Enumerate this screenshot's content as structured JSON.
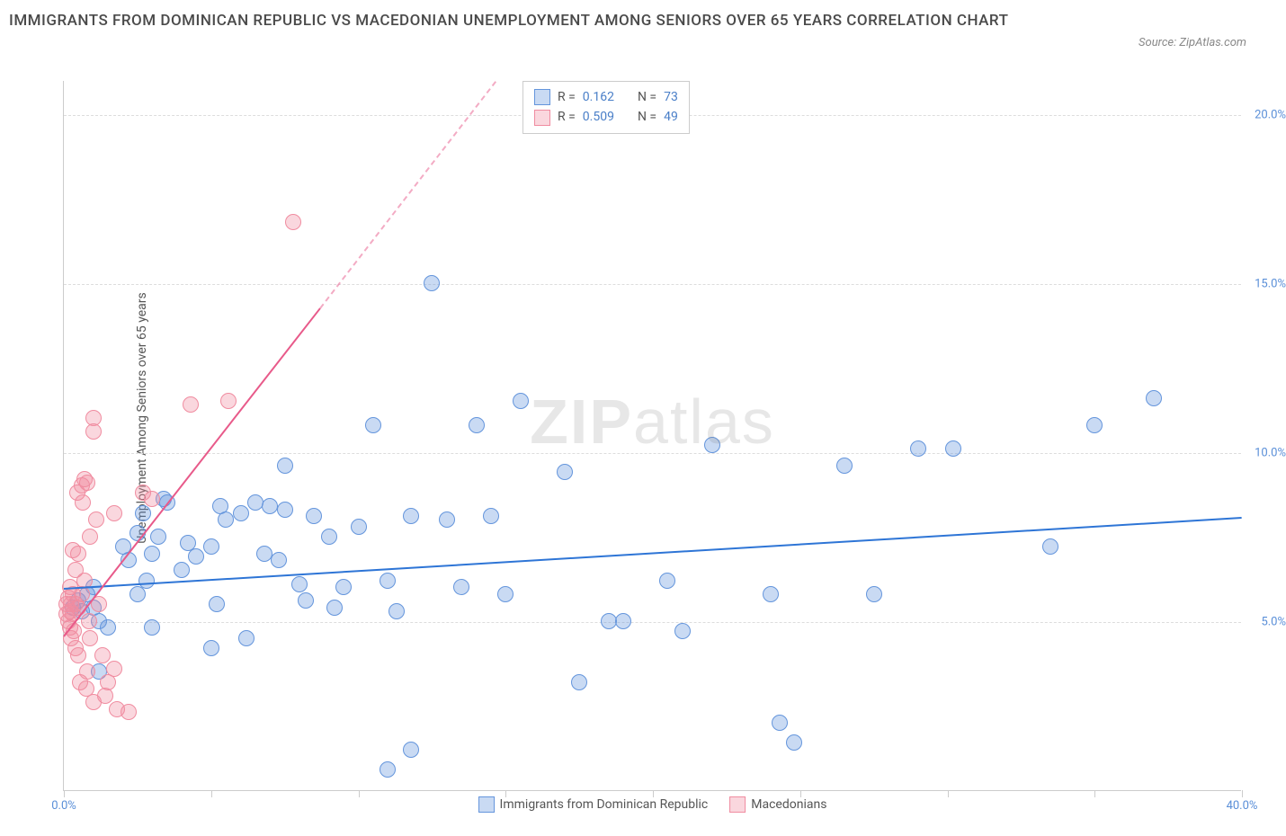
{
  "title": "IMMIGRANTS FROM DOMINICAN REPUBLIC VS MACEDONIAN UNEMPLOYMENT AMONG SENIORS OVER 65 YEARS CORRELATION CHART",
  "source": "Source: ZipAtlas.com",
  "y_axis_label": "Unemployment Among Seniors over 65 years",
  "watermark_bold": "ZIP",
  "watermark_light": "atlas",
  "chart": {
    "type": "scatter",
    "xlim": [
      0,
      40
    ],
    "ylim": [
      0,
      21
    ],
    "x_ticks": [
      0,
      5,
      10,
      15,
      20,
      25,
      30,
      35,
      40
    ],
    "x_tick_labels": {
      "0": "0.0%",
      "40": "40.0%"
    },
    "y_gridlines": [
      5,
      10,
      15,
      20
    ],
    "y_tick_labels": {
      "5": "5.0%",
      "10": "10.0%",
      "15": "15.0%",
      "20": "20.0%"
    },
    "background_color": "#ffffff",
    "grid_color": "#dddddd"
  },
  "series": [
    {
      "name": "Immigrants from Dominican Republic",
      "color_fill": "rgba(100,150,220,0.35)",
      "color_stroke": "#6495dc",
      "marker_radius": 9,
      "trend": {
        "x1": 0,
        "y1": 6.0,
        "x2": 40,
        "y2": 8.1,
        "color": "#2e75d6",
        "width": 2
      },
      "stats": {
        "R": "0.162",
        "N": "73"
      },
      "points": [
        [
          0.3,
          5.4
        ],
        [
          0.5,
          5.6
        ],
        [
          0.6,
          5.3
        ],
        [
          0.8,
          5.8
        ],
        [
          1.0,
          6.0
        ],
        [
          1.0,
          5.4
        ],
        [
          1.2,
          5.0
        ],
        [
          1.5,
          4.8
        ],
        [
          1.2,
          3.5
        ],
        [
          2.0,
          7.2
        ],
        [
          2.2,
          6.8
        ],
        [
          2.5,
          7.6
        ],
        [
          2.7,
          8.2
        ],
        [
          2.5,
          5.8
        ],
        [
          2.8,
          6.2
        ],
        [
          3.0,
          7.0
        ],
        [
          3.2,
          7.5
        ],
        [
          3.5,
          8.5
        ],
        [
          3.0,
          4.8
        ],
        [
          3.4,
          8.6
        ],
        [
          4.0,
          6.5
        ],
        [
          4.2,
          7.3
        ],
        [
          4.5,
          6.9
        ],
        [
          5.0,
          7.2
        ],
        [
          5.3,
          8.4
        ],
        [
          5.5,
          8.0
        ],
        [
          5.0,
          4.2
        ],
        [
          5.2,
          5.5
        ],
        [
          6.0,
          8.2
        ],
        [
          6.5,
          8.5
        ],
        [
          6.2,
          4.5
        ],
        [
          6.8,
          7.0
        ],
        [
          7.0,
          8.4
        ],
        [
          7.3,
          6.8
        ],
        [
          7.5,
          8.3
        ],
        [
          7.5,
          9.6
        ],
        [
          8.0,
          6.1
        ],
        [
          8.2,
          5.6
        ],
        [
          8.5,
          8.1
        ],
        [
          9.0,
          7.5
        ],
        [
          9.2,
          5.4
        ],
        [
          9.5,
          6.0
        ],
        [
          10.0,
          7.8
        ],
        [
          10.5,
          10.8
        ],
        [
          11.0,
          6.2
        ],
        [
          11.3,
          5.3
        ],
        [
          11.8,
          8.1
        ],
        [
          11.0,
          0.6
        ],
        [
          11.8,
          1.2
        ],
        [
          12.5,
          15.0
        ],
        [
          13.0,
          8.0
        ],
        [
          13.5,
          6.0
        ],
        [
          14.0,
          10.8
        ],
        [
          14.5,
          8.1
        ],
        [
          15.0,
          5.8
        ],
        [
          15.5,
          11.5
        ],
        [
          17.0,
          9.4
        ],
        [
          17.5,
          3.2
        ],
        [
          18.5,
          5.0
        ],
        [
          19.0,
          5.0
        ],
        [
          20.5,
          6.2
        ],
        [
          21.0,
          4.7
        ],
        [
          22.0,
          10.2
        ],
        [
          24.0,
          5.8
        ],
        [
          24.3,
          2.0
        ],
        [
          24.8,
          1.4
        ],
        [
          26.5,
          9.6
        ],
        [
          27.5,
          5.8
        ],
        [
          29.0,
          10.1
        ],
        [
          30.2,
          10.1
        ],
        [
          33.5,
          7.2
        ],
        [
          35.0,
          10.8
        ],
        [
          37.0,
          11.6
        ]
      ]
    },
    {
      "name": "Macedonians",
      "color_fill": "rgba(240,140,160,0.35)",
      "color_stroke": "#f08ca0",
      "marker_radius": 9,
      "trend": {
        "x1": 0,
        "y1": 4.6,
        "x2": 8.7,
        "y2": 14.3,
        "color": "#e85a8a",
        "width": 2,
        "dash_extend_to": [
          17.5,
          24.2
        ]
      },
      "stats": {
        "R": "0.509",
        "N": "49"
      },
      "points": [
        [
          0.1,
          5.2
        ],
        [
          0.1,
          5.5
        ],
        [
          0.15,
          5.0
        ],
        [
          0.15,
          5.7
        ],
        [
          0.2,
          4.8
        ],
        [
          0.2,
          5.3
        ],
        [
          0.2,
          6.0
        ],
        [
          0.25,
          5.5
        ],
        [
          0.25,
          4.5
        ],
        [
          0.3,
          5.2
        ],
        [
          0.3,
          5.8
        ],
        [
          0.3,
          7.1
        ],
        [
          0.35,
          4.7
        ],
        [
          0.4,
          5.5
        ],
        [
          0.4,
          6.5
        ],
        [
          0.4,
          4.2
        ],
        [
          0.45,
          8.8
        ],
        [
          0.5,
          7.0
        ],
        [
          0.5,
          5.4
        ],
        [
          0.5,
          4.0
        ],
        [
          0.55,
          3.2
        ],
        [
          0.6,
          9.0
        ],
        [
          0.6,
          5.8
        ],
        [
          0.65,
          8.5
        ],
        [
          0.7,
          6.2
        ],
        [
          0.7,
          9.2
        ],
        [
          0.75,
          3.0
        ],
        [
          0.8,
          3.5
        ],
        [
          0.8,
          9.1
        ],
        [
          0.85,
          5.0
        ],
        [
          0.9,
          7.5
        ],
        [
          0.9,
          4.5
        ],
        [
          1.0,
          11.0
        ],
        [
          1.0,
          10.6
        ],
        [
          1.0,
          2.6
        ],
        [
          1.1,
          8.0
        ],
        [
          1.2,
          5.5
        ],
        [
          1.3,
          4.0
        ],
        [
          1.4,
          2.8
        ],
        [
          1.5,
          3.2
        ],
        [
          1.7,
          3.6
        ],
        [
          1.7,
          8.2
        ],
        [
          1.8,
          2.4
        ],
        [
          2.2,
          2.3
        ],
        [
          2.7,
          8.8
        ],
        [
          3.0,
          8.6
        ],
        [
          4.3,
          11.4
        ],
        [
          5.6,
          11.5
        ],
        [
          7.8,
          16.8
        ]
      ]
    }
  ],
  "legend_top": [
    {
      "swatch_fill": "rgba(100,150,220,0.35)",
      "swatch_stroke": "#6495dc",
      "R": "0.162",
      "N": "73"
    },
    {
      "swatch_fill": "rgba(240,140,160,0.35)",
      "swatch_stroke": "#f08ca0",
      "R": "0.509",
      "N": "49"
    }
  ],
  "legend_bottom": [
    {
      "swatch_fill": "rgba(100,150,220,0.35)",
      "swatch_stroke": "#6495dc",
      "label": "Immigrants from Dominican Republic"
    },
    {
      "swatch_fill": "rgba(240,140,160,0.35)",
      "swatch_stroke": "#f08ca0",
      "label": "Macedonians"
    }
  ],
  "labels": {
    "R_prefix": "R = ",
    "N_prefix": "N = "
  }
}
